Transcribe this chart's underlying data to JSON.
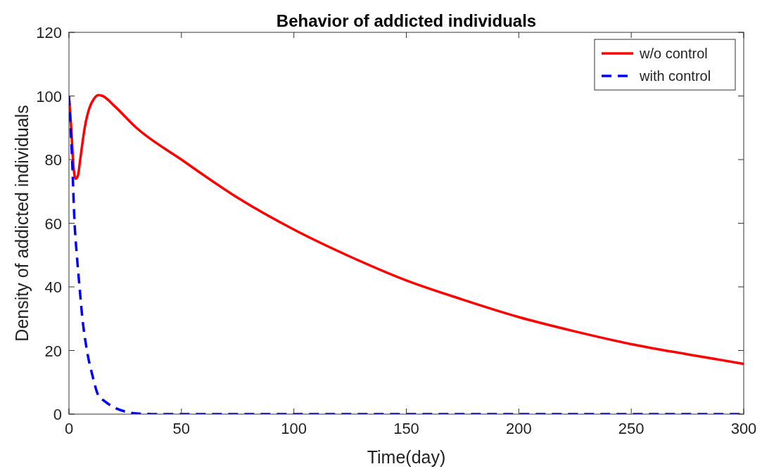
{
  "chart_data": {
    "type": "line",
    "title": "Behavior of addicted individuals",
    "xlabel": "Time(day)",
    "ylabel": "Density of addicted individuals",
    "xlim": [
      0,
      300
    ],
    "xticks": [
      0,
      50,
      100,
      150,
      200,
      250,
      300
    ],
    "ylim": [
      0,
      120
    ],
    "yticks": [
      0,
      20,
      40,
      60,
      80,
      100,
      120
    ],
    "legend": "top right",
    "series": [
      {
        "name": "w/o control",
        "color": "#ff0000",
        "line_style": "solid",
        "x": [
          0,
          1,
          2,
          3,
          4,
          5,
          7,
          9,
          11,
          13,
          15,
          20,
          30,
          50,
          75,
          100,
          125,
          150,
          175,
          200,
          225,
          250,
          275,
          300
        ],
        "values": [
          100,
          90,
          78,
          74,
          75,
          80,
          90,
          96,
          99,
          100.3,
          100,
          97,
          90,
          80,
          68,
          58,
          49.5,
          42,
          36,
          30.5,
          26,
          22,
          18.8,
          15.8
        ]
      },
      {
        "name": "with control",
        "color": "#0000ff",
        "line_style": "dashed",
        "x": [
          0,
          1.4,
          2.5,
          3.5,
          4.7,
          6,
          8,
          10.5,
          13,
          16,
          19,
          25,
          30,
          40,
          100,
          200,
          300
        ],
        "values": [
          100,
          80,
          60,
          50,
          40,
          30,
          20,
          12,
          6,
          4,
          2.5,
          0.8,
          0.2,
          0,
          0,
          0,
          0
        ]
      }
    ]
  }
}
